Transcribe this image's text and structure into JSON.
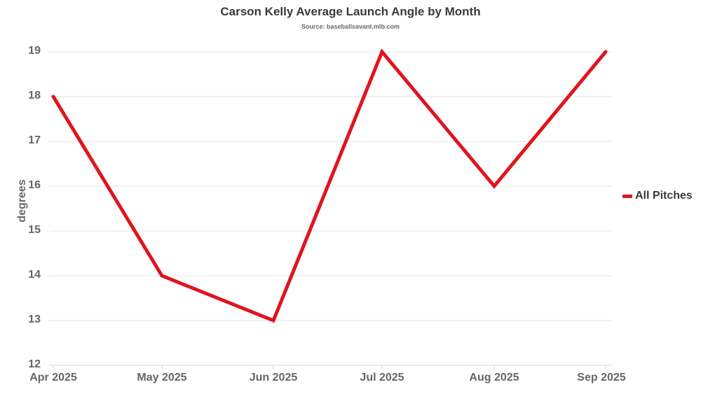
{
  "chart_data": {
    "type": "line",
    "title": "Carson Kelly Average Launch Angle by Month",
    "subtitle": "Source: baseballsavant.mlb.com",
    "xlabel": "",
    "ylabel": "degrees",
    "categories": [
      "Apr 2025",
      "May 2025",
      "Jun 2025",
      "Jul 2025",
      "Aug 2025",
      "Sep 2025"
    ],
    "series": [
      {
        "name": "All Pitches",
        "color": "#e0141e",
        "values": [
          18,
          14,
          13,
          19,
          16,
          19
        ]
      }
    ],
    "ylim": [
      12,
      19
    ],
    "yticks": [
      "19",
      "18",
      "17",
      "16",
      "15",
      "14",
      "13",
      "12"
    ],
    "grid": true,
    "legend_position": "right"
  },
  "legend": {
    "label": "All Pitches",
    "color": "#e0141e"
  }
}
